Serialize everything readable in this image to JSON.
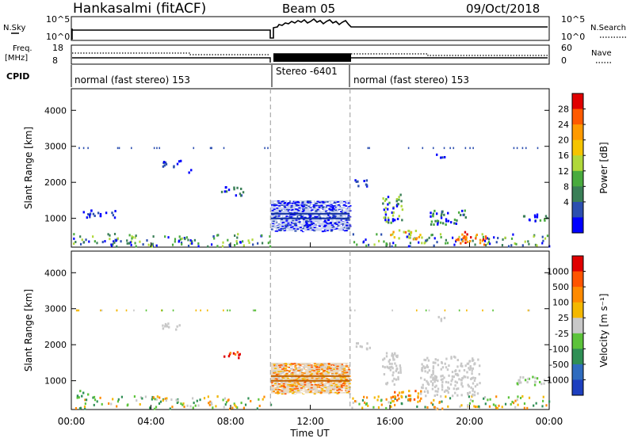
{
  "header": {
    "station": "Hankasalmi (fitACF)",
    "beam": "Beam 05",
    "date": "09/Oct/2018"
  },
  "summary": {
    "nsky_label": "N.Sky",
    "nsky_ticks": [
      "10^5",
      "10^0"
    ],
    "nsearch_label": "N.Search",
    "nsearch_ticks": [
      "10^5",
      "10^0"
    ],
    "freq_label": "Freq.",
    "freq_unit": "[MHz]",
    "freq_ticks": [
      "18",
      "8"
    ],
    "nave_label": "Nave",
    "nave_ticks": [
      "60",
      "0"
    ],
    "cpid_label": "CPID",
    "cpid_segments": [
      {
        "text": "normal (fast stereo) 153",
        "start_h": 0,
        "end_h": 10
      },
      {
        "text": "Stereo -6401",
        "start_h": 10,
        "end_h": 14
      },
      {
        "text": "normal (fast stereo) 153",
        "start_h": 14,
        "end_h": 24
      }
    ]
  },
  "chart_data": [
    {
      "type": "heatmap",
      "name": "power",
      "ylabel": "Slant Range [km]",
      "ylim": [
        200,
        4600
      ],
      "yticks": [
        "1000",
        "2000",
        "3000",
        "4000"
      ],
      "xlim": [
        0,
        24
      ],
      "colorbar": {
        "label": "Power [dB]",
        "ticks": [
          "28",
          "24",
          "20",
          "16",
          "12",
          "8",
          "4"
        ],
        "colors": [
          "#0000ff",
          "#2c4fb0",
          "#3a7f57",
          "#49ab3e",
          "#b0d83a",
          "#f5c400",
          "#ff9a00",
          "#ff5a00",
          "#e00000"
        ]
      }
    },
    {
      "type": "heatmap",
      "name": "velocity",
      "ylabel": "Slant Range [km]",
      "xlabel": "Time UT",
      "ylim": [
        200,
        4600
      ],
      "yticks": [
        "1000",
        "2000",
        "3000",
        "4000"
      ],
      "xticks": [
        "00:00",
        "04:00",
        "08:00",
        "12:00",
        "16:00",
        "20:00",
        "00:00"
      ],
      "xlim": [
        0,
        24
      ],
      "colorbar": {
        "label": "Velocity [m s⁻¹]",
        "ticks": [
          "1000",
          "500",
          "100",
          "25",
          "-25",
          "-100",
          "-500",
          "-1000"
        ],
        "colors": [
          "#1d3fbf",
          "#2f6cbf",
          "#2f8f55",
          "#5cc33a",
          "#c8c8c8",
          "#f4b800",
          "#ff8a00",
          "#ff5400",
          "#e00000"
        ]
      }
    }
  ]
}
